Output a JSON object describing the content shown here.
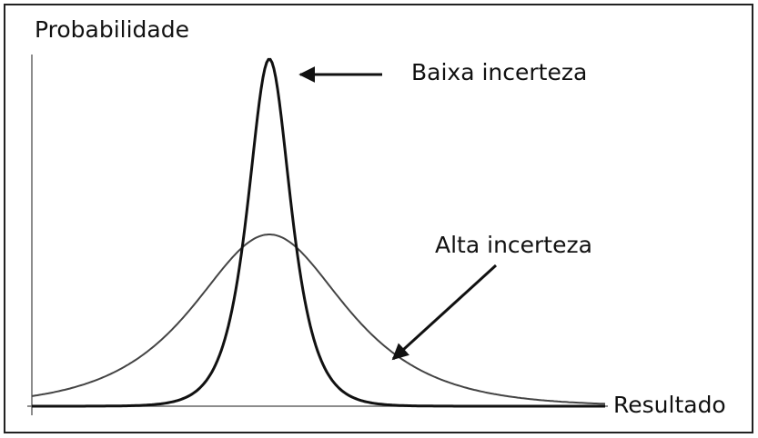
{
  "y_axis_label": "Probabilidade",
  "x_axis_label": "Resultado",
  "annotations": [
    "Baixa incerteza",
    "Alta incerteza"
  ]
}
